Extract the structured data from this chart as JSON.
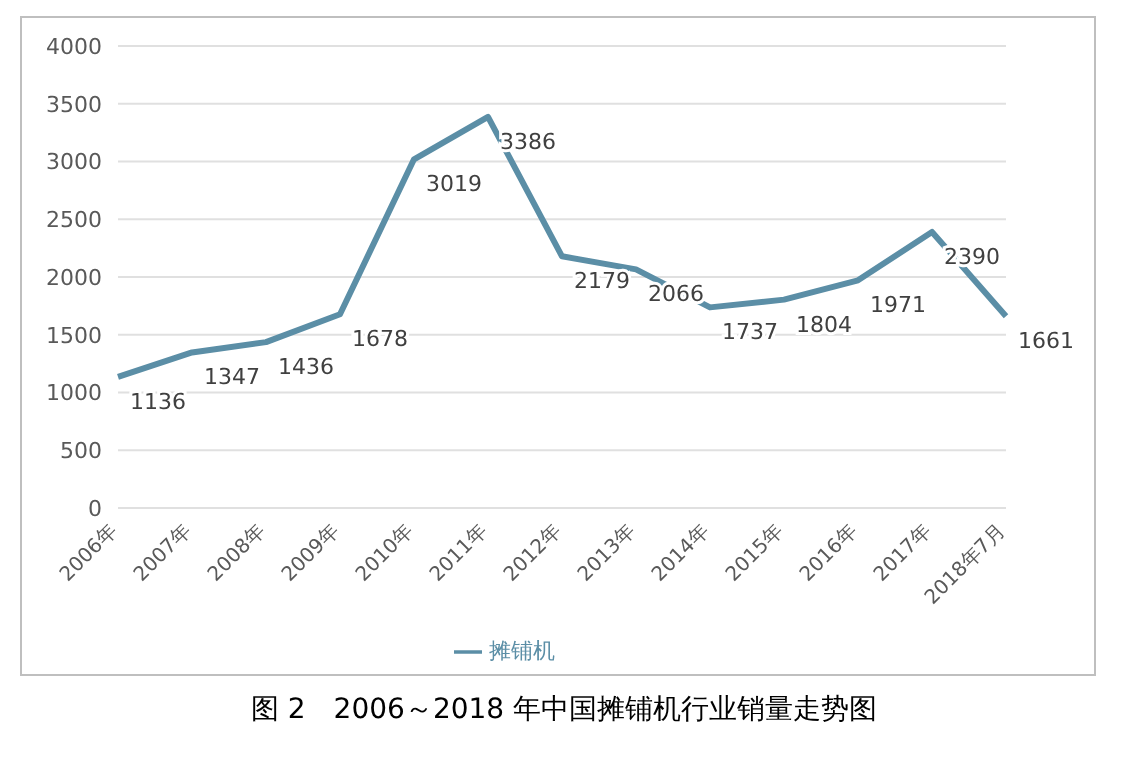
{
  "chart_data": {
    "type": "line",
    "title": "图 2　2006～2018 年中国摊铺机行业销量走势图",
    "categories": [
      "2006年",
      "2007年",
      "2008年",
      "2009年",
      "2010年",
      "2011年",
      "2012年",
      "2013年",
      "2014年",
      "2015年",
      "2016年",
      "2017年",
      "2018年7月"
    ],
    "series": [
      {
        "name": "摊铺机",
        "color": "#5b8ea6",
        "values": [
          1136,
          1347,
          1436,
          1678,
          3019,
          3386,
          2179,
          2066,
          1737,
          1804,
          1971,
          2390,
          1661
        ]
      }
    ],
    "ylim": [
      0,
      4000
    ],
    "yticks": [
      0,
      500,
      1000,
      1500,
      2000,
      2500,
      3000,
      3500,
      4000
    ],
    "grid": "y",
    "legend": "bottom",
    "marker": "none",
    "line_style": "solid",
    "data_labels": true
  }
}
